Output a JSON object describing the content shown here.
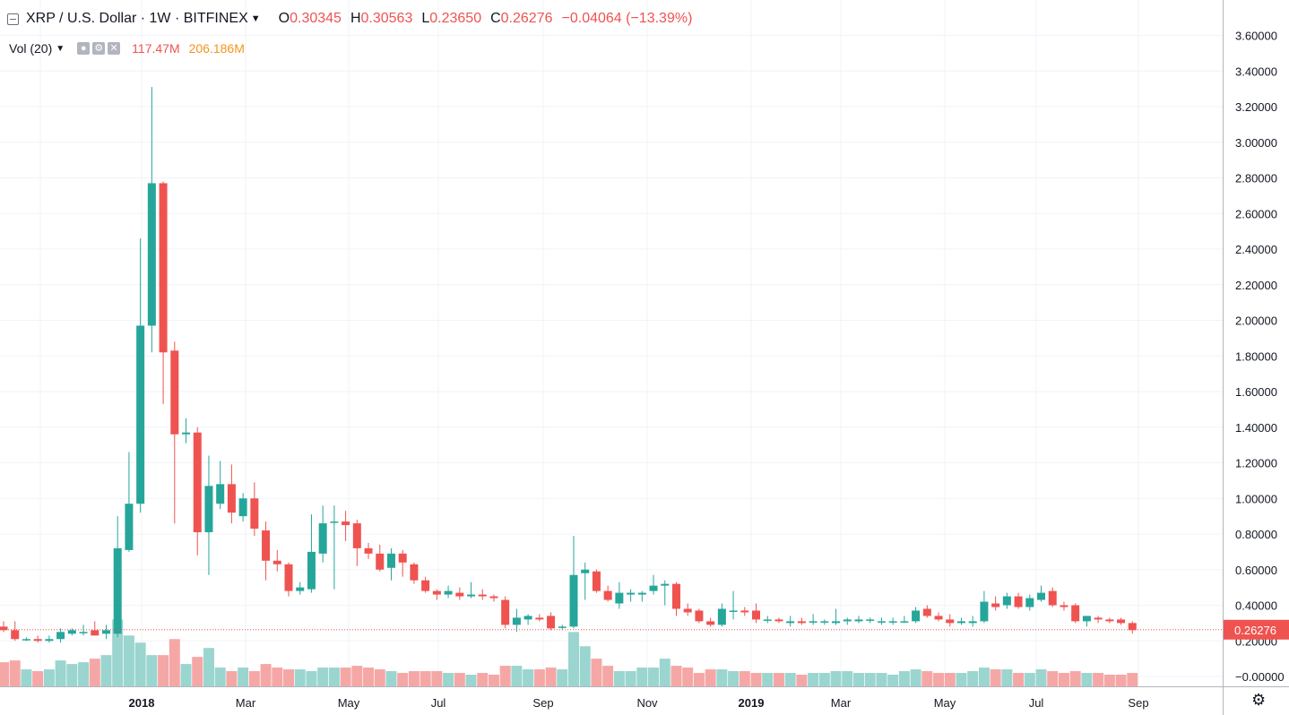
{
  "legend": {
    "symbol": "XRP / U.S. Dollar",
    "interval": "1W",
    "exchange": "BITFINEX",
    "open_key": "O",
    "open": "0.30345",
    "high_key": "H",
    "high": "0.30563",
    "low_key": "L",
    "low": "0.23650",
    "close_key": "C",
    "close": "0.26276",
    "change": "−0.04064 (−13.39%)"
  },
  "volume_legend": {
    "label": "Vol (20)",
    "value1": "117.47M",
    "value2": "206.186M"
  },
  "icons": [
    "collapse-icon",
    "chevron-down-icon",
    "eye-icon",
    "gear-icon",
    "close-icon",
    "settings-gear-icon"
  ],
  "colors": {
    "up": "#26a69a",
    "down": "#ef5350",
    "vol_up": "#9bd5cf",
    "vol_down": "#f5a7a6",
    "grid": "#f0f3fa"
  },
  "chart_data": {
    "type": "candlestick",
    "title": "XRP / U.S. Dollar, 1W, BITFINEX",
    "y_ticks": [
      "3.60000",
      "3.40000",
      "3.20000",
      "3.00000",
      "2.80000",
      "2.60000",
      "2.40000",
      "2.20000",
      "2.00000",
      "1.80000",
      "1.60000",
      "1.40000",
      "1.20000",
      "1.00000",
      "0.80000",
      "0.60000",
      "0.40000",
      "0.20000",
      "−0.00000"
    ],
    "ylim": [
      -0.1,
      3.7
    ],
    "x_ticks": [
      "2018",
      "Mar",
      "May",
      "Jul",
      "Sep",
      "Nov",
      "2019",
      "Mar",
      "May",
      "Jul",
      "Sep"
    ],
    "last_price": "0.26276",
    "series": [
      {
        "name": "XRP/USD weekly",
        "ohlc": [
          [
            0.28,
            0.31,
            0.25,
            0.26
          ],
          [
            0.26,
            0.31,
            0.2,
            0.21
          ],
          [
            0.21,
            0.22,
            0.2,
            0.21
          ],
          [
            0.21,
            0.23,
            0.19,
            0.2
          ],
          [
            0.2,
            0.23,
            0.19,
            0.21
          ],
          [
            0.21,
            0.27,
            0.19,
            0.25
          ],
          [
            0.24,
            0.27,
            0.23,
            0.26
          ],
          [
            0.25,
            0.29,
            0.23,
            0.25
          ],
          [
            0.26,
            0.31,
            0.23,
            0.23
          ],
          [
            0.24,
            0.29,
            0.21,
            0.26
          ],
          [
            0.24,
            0.9,
            0.22,
            0.72
          ],
          [
            0.71,
            1.26,
            0.7,
            0.97
          ],
          [
            0.97,
            2.46,
            0.92,
            1.97
          ],
          [
            1.97,
            3.31,
            1.82,
            2.77
          ],
          [
            2.77,
            2.78,
            1.53,
            1.82
          ],
          [
            1.83,
            1.88,
            0.86,
            1.36
          ],
          [
            1.36,
            1.45,
            1.31,
            1.37
          ],
          [
            1.37,
            1.4,
            0.68,
            0.81
          ],
          [
            0.81,
            1.24,
            0.57,
            1.07
          ],
          [
            0.97,
            1.21,
            0.94,
            1.08
          ],
          [
            1.08,
            1.19,
            0.86,
            0.92
          ],
          [
            0.9,
            1.03,
            0.87,
            1.0
          ],
          [
            1.0,
            1.09,
            0.79,
            0.83
          ],
          [
            0.82,
            0.87,
            0.54,
            0.65
          ],
          [
            0.65,
            0.71,
            0.59,
            0.63
          ],
          [
            0.63,
            0.64,
            0.45,
            0.48
          ],
          [
            0.48,
            0.53,
            0.46,
            0.5
          ],
          [
            0.49,
            0.91,
            0.47,
            0.7
          ],
          [
            0.69,
            0.96,
            0.64,
            0.86
          ],
          [
            0.87,
            0.96,
            0.49,
            0.87
          ],
          [
            0.87,
            0.93,
            0.76,
            0.85
          ],
          [
            0.86,
            0.88,
            0.62,
            0.72
          ],
          [
            0.72,
            0.75,
            0.66,
            0.69
          ],
          [
            0.69,
            0.74,
            0.59,
            0.6
          ],
          [
            0.61,
            0.72,
            0.54,
            0.69
          ],
          [
            0.69,
            0.71,
            0.56,
            0.64
          ],
          [
            0.63,
            0.64,
            0.52,
            0.54
          ],
          [
            0.54,
            0.56,
            0.47,
            0.48
          ],
          [
            0.48,
            0.49,
            0.43,
            0.46
          ],
          [
            0.46,
            0.51,
            0.44,
            0.48
          ],
          [
            0.47,
            0.5,
            0.43,
            0.45
          ],
          [
            0.45,
            0.53,
            0.44,
            0.46
          ],
          [
            0.46,
            0.49,
            0.43,
            0.45
          ],
          [
            0.45,
            0.46,
            0.42,
            0.44
          ],
          [
            0.43,
            0.45,
            0.27,
            0.29
          ],
          [
            0.29,
            0.38,
            0.25,
            0.33
          ],
          [
            0.32,
            0.35,
            0.29,
            0.34
          ],
          [
            0.33,
            0.35,
            0.31,
            0.32
          ],
          [
            0.34,
            0.36,
            0.26,
            0.27
          ],
          [
            0.28,
            0.29,
            0.26,
            0.28
          ],
          [
            0.28,
            0.79,
            0.27,
            0.57
          ],
          [
            0.58,
            0.64,
            0.43,
            0.6
          ],
          [
            0.59,
            0.6,
            0.47,
            0.48
          ],
          [
            0.48,
            0.51,
            0.42,
            0.43
          ],
          [
            0.41,
            0.53,
            0.38,
            0.47
          ],
          [
            0.46,
            0.49,
            0.42,
            0.47
          ],
          [
            0.46,
            0.48,
            0.42,
            0.47
          ],
          [
            0.48,
            0.57,
            0.46,
            0.51
          ],
          [
            0.51,
            0.54,
            0.4,
            0.52
          ],
          [
            0.52,
            0.53,
            0.34,
            0.38
          ],
          [
            0.38,
            0.41,
            0.34,
            0.36
          ],
          [
            0.37,
            0.38,
            0.3,
            0.31
          ],
          [
            0.31,
            0.33,
            0.28,
            0.29
          ],
          [
            0.29,
            0.41,
            0.28,
            0.38
          ],
          [
            0.37,
            0.48,
            0.32,
            0.37
          ],
          [
            0.37,
            0.39,
            0.34,
            0.36
          ],
          [
            0.37,
            0.41,
            0.3,
            0.32
          ],
          [
            0.32,
            0.34,
            0.3,
            0.32
          ],
          [
            0.32,
            0.33,
            0.3,
            0.31
          ],
          [
            0.3,
            0.34,
            0.28,
            0.31
          ],
          [
            0.31,
            0.33,
            0.29,
            0.3
          ],
          [
            0.31,
            0.35,
            0.29,
            0.31
          ],
          [
            0.31,
            0.32,
            0.29,
            0.31
          ],
          [
            0.3,
            0.38,
            0.29,
            0.31
          ],
          [
            0.31,
            0.33,
            0.29,
            0.32
          ],
          [
            0.31,
            0.34,
            0.3,
            0.32
          ],
          [
            0.32,
            0.33,
            0.3,
            0.32
          ],
          [
            0.31,
            0.33,
            0.29,
            0.31
          ],
          [
            0.31,
            0.33,
            0.29,
            0.31
          ],
          [
            0.31,
            0.34,
            0.3,
            0.31
          ],
          [
            0.31,
            0.39,
            0.3,
            0.37
          ],
          [
            0.38,
            0.4,
            0.33,
            0.34
          ],
          [
            0.34,
            0.36,
            0.31,
            0.32
          ],
          [
            0.32,
            0.35,
            0.28,
            0.3
          ],
          [
            0.3,
            0.33,
            0.29,
            0.31
          ],
          [
            0.3,
            0.34,
            0.28,
            0.31
          ],
          [
            0.31,
            0.48,
            0.3,
            0.42
          ],
          [
            0.41,
            0.45,
            0.37,
            0.39
          ],
          [
            0.4,
            0.47,
            0.38,
            0.45
          ],
          [
            0.45,
            0.47,
            0.38,
            0.39
          ],
          [
            0.39,
            0.46,
            0.37,
            0.44
          ],
          [
            0.43,
            0.51,
            0.42,
            0.47
          ],
          [
            0.48,
            0.5,
            0.39,
            0.4
          ],
          [
            0.4,
            0.42,
            0.37,
            0.39
          ],
          [
            0.4,
            0.41,
            0.3,
            0.31
          ],
          [
            0.31,
            0.34,
            0.28,
            0.34
          ],
          [
            0.33,
            0.34,
            0.3,
            0.32
          ],
          [
            0.32,
            0.33,
            0.3,
            0.31
          ],
          [
            0.32,
            0.33,
            0.29,
            0.3
          ],
          [
            0.3,
            0.31,
            0.24,
            0.26
          ]
        ]
      },
      {
        "name": "Volume",
        "values": [
          0.08,
          0.09,
          0.04,
          0.03,
          0.04,
          0.09,
          0.07,
          0.08,
          0.1,
          0.12,
          0.32,
          0.23,
          0.19,
          0.12,
          0.12,
          0.21,
          0.07,
          0.11,
          0.16,
          0.05,
          0.03,
          0.05,
          0.03,
          0.07,
          0.05,
          0.04,
          0.04,
          0.03,
          0.05,
          0.05,
          0.05,
          0.06,
          0.05,
          0.04,
          0.03,
          0.02,
          0.03,
          0.03,
          0.03,
          0.02,
          0.02,
          0.01,
          0.02,
          0.01,
          0.06,
          0.06,
          0.04,
          0.04,
          0.05,
          0.04,
          0.25,
          0.17,
          0.1,
          0.06,
          0.03,
          0.03,
          0.05,
          0.05,
          0.1,
          0.06,
          0.05,
          0.02,
          0.04,
          0.04,
          0.03,
          0.03,
          0.02,
          0.02,
          0.02,
          0.02,
          0.01,
          0.02,
          0.02,
          0.03,
          0.03,
          0.02,
          0.02,
          0.02,
          0.01,
          0.03,
          0.04,
          0.03,
          0.02,
          0.02,
          0.02,
          0.03,
          0.05,
          0.04,
          0.04,
          0.02,
          0.02,
          0.04,
          0.03,
          0.02,
          0.03,
          0.02,
          0.02,
          0.01,
          0.01,
          0.02
        ]
      }
    ]
  }
}
